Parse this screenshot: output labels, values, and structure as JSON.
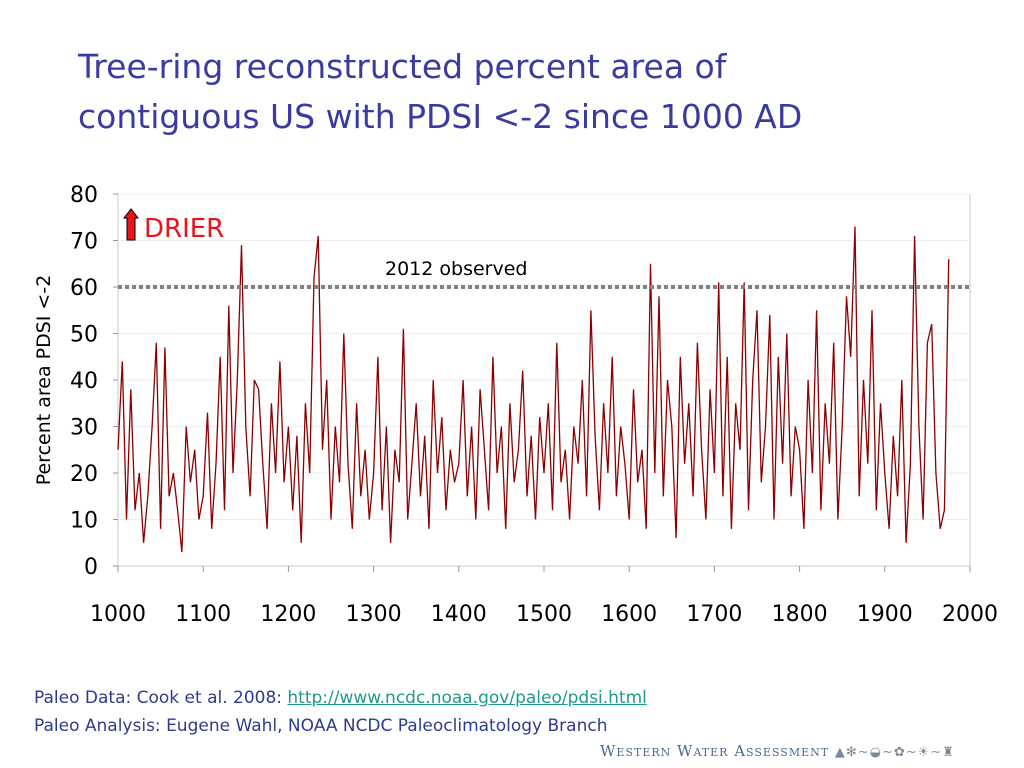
{
  "title_line1": "Tree-ring reconstructed percent area of",
  "title_line2": "contiguous US with PDSI <-2 since 1000 AD",
  "footer": {
    "line1_prefix": "Paleo Data: Cook et al. 2008: ",
    "line1_link": "http://www.ncdc.noaa.gov/paleo/pdsi.html",
    "line2": "Paleo Analysis: Eugene Wahl, NOAA NCDC Paleoclimatology Branch"
  },
  "logo_text": "Western Water Assessment",
  "chart_data": {
    "type": "line",
    "title": "",
    "xlabel": "",
    "ylabel": "Percent area PDSI <-2",
    "xlim": [
      1000,
      2000
    ],
    "ylim": [
      0,
      80
    ],
    "xticks": [
      1000,
      1100,
      1200,
      1300,
      1400,
      1500,
      1600,
      1700,
      1800,
      1900,
      2000
    ],
    "yticks": [
      0,
      10,
      20,
      30,
      40,
      50,
      60,
      70,
      80
    ],
    "grid": true,
    "line_color": "#8b0000",
    "annotations": {
      "drier_label": "DRIER",
      "drier_color": "#e8141b",
      "reference_line": {
        "y": 60,
        "label": "2012 observed",
        "color": "#808080",
        "style": "dotted"
      }
    },
    "x_start": 1000,
    "x_step": 5,
    "values": [
      25,
      44,
      10,
      38,
      12,
      20,
      5,
      15,
      30,
      48,
      8,
      47,
      15,
      20,
      12,
      3,
      30,
      18,
      25,
      10,
      15,
      33,
      8,
      22,
      45,
      12,
      56,
      20,
      40,
      69,
      30,
      15,
      40,
      38,
      22,
      8,
      35,
      20,
      44,
      18,
      30,
      12,
      28,
      5,
      35,
      20,
      62,
      71,
      25,
      40,
      10,
      30,
      18,
      50,
      22,
      8,
      35,
      15,
      25,
      10,
      20,
      45,
      12,
      30,
      5,
      25,
      18,
      51,
      10,
      22,
      35,
      15,
      28,
      8,
      40,
      20,
      32,
      12,
      25,
      18,
      22,
      40,
      15,
      30,
      10,
      38,
      25,
      12,
      45,
      20,
      30,
      8,
      35,
      18,
      25,
      42,
      15,
      28,
      10,
      32,
      20,
      35,
      12,
      48,
      18,
      25,
      10,
      30,
      22,
      40,
      15,
      55,
      28,
      12,
      35,
      20,
      45,
      15,
      30,
      22,
      10,
      38,
      18,
      25,
      8,
      65,
      20,
      58,
      15,
      40,
      30,
      6,
      45,
      22,
      35,
      15,
      48,
      25,
      10,
      38,
      20,
      61,
      15,
      45,
      8,
      35,
      25,
      61,
      12,
      40,
      55,
      18,
      30,
      54,
      10,
      45,
      22,
      50,
      15,
      30,
      25,
      8,
      40,
      20,
      55,
      12,
      35,
      22,
      48,
      10,
      30,
      58,
      45,
      73,
      15,
      40,
      22,
      55,
      12,
      35,
      20,
      8,
      28,
      15,
      40,
      5,
      22,
      71,
      30,
      10,
      48,
      52,
      20,
      8,
      12,
      66
    ]
  }
}
